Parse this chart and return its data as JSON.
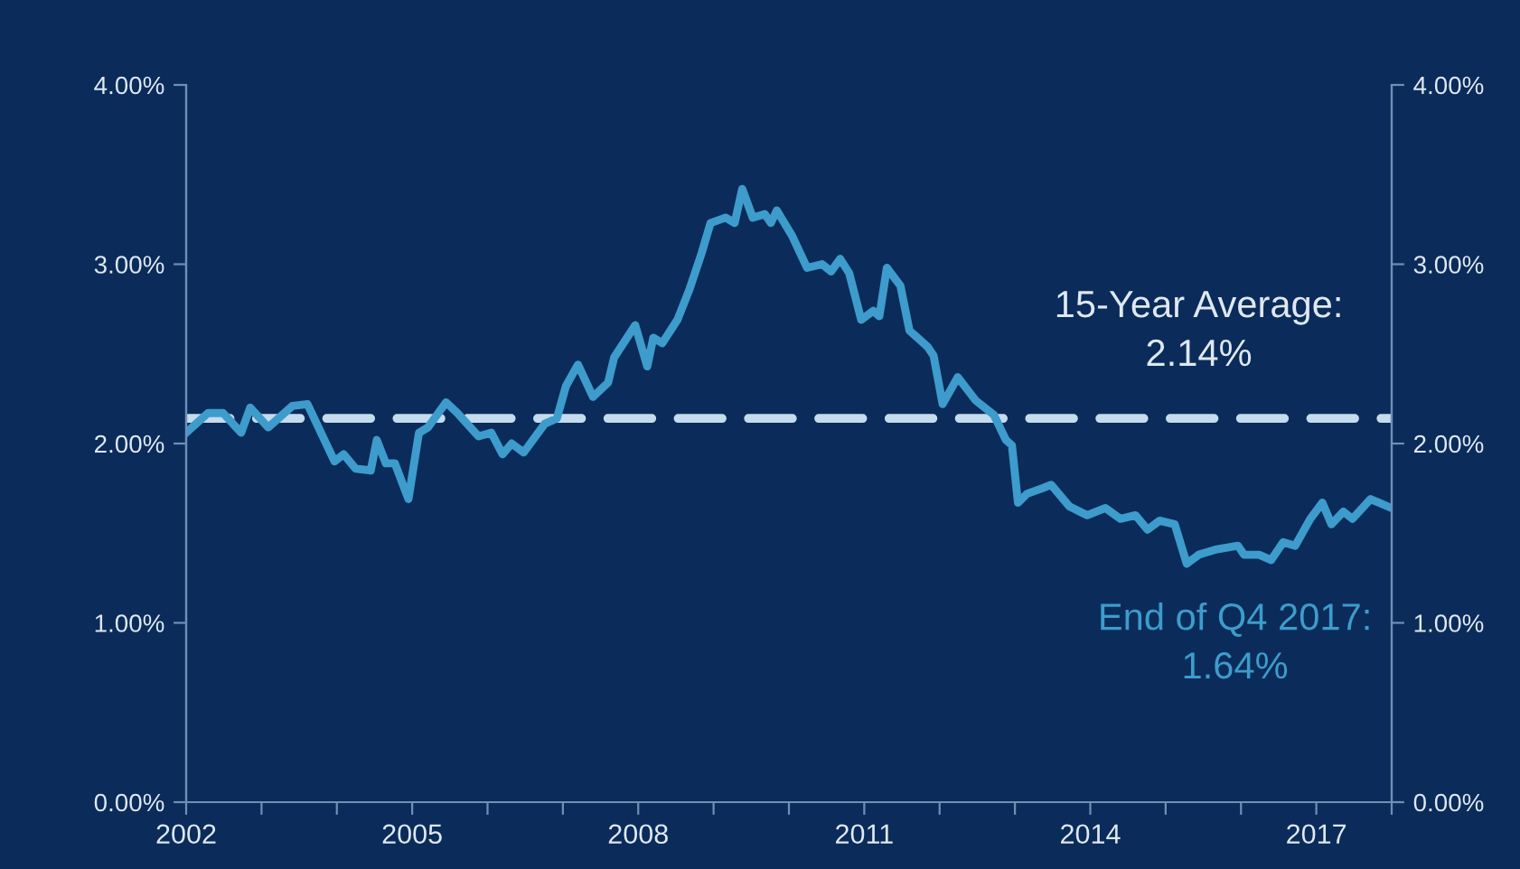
{
  "chart_data": {
    "type": "line",
    "x": [
      2002.0,
      2002.29,
      2002.49,
      2002.73,
      2002.85,
      2003.09,
      2003.41,
      2003.61,
      2003.97,
      2004.09,
      2004.25,
      2004.45,
      2004.53,
      2004.65,
      2004.77,
      2004.95,
      2005.09,
      2005.21,
      2005.45,
      2005.6,
      2005.88,
      2006.05,
      2006.2,
      2006.32,
      2006.48,
      2006.76,
      2006.92,
      2007.04,
      2007.2,
      2007.4,
      2007.6,
      2007.68,
      2007.96,
      2008.12,
      2008.2,
      2008.32,
      2008.52,
      2008.68,
      2008.84,
      2008.96,
      2009.16,
      2009.28,
      2009.38,
      2009.52,
      2009.68,
      2009.76,
      2009.84,
      2010.04,
      2010.24,
      2010.44,
      2010.56,
      2010.68,
      2010.8,
      2010.96,
      2011.12,
      2011.2,
      2011.3,
      2011.48,
      2011.6,
      2011.84,
      2011.92,
      2012.04,
      2012.24,
      2012.48,
      2012.72,
      2012.88,
      2012.96,
      2013.04,
      2013.16,
      2013.36,
      2013.48,
      2013.72,
      2013.96,
      2014.2,
      2014.4,
      2014.6,
      2014.76,
      2014.92,
      2015.12,
      2015.28,
      2015.44,
      2015.68,
      2015.96,
      2016.04,
      2016.24,
      2016.4,
      2016.56,
      2016.72,
      2016.92,
      2017.08,
      2017.2,
      2017.36,
      2017.48,
      2017.72,
      2018.0
    ],
    "series": [
      {
        "color": "#3d9ccb",
        "axis": "y",
        "values": [
          2.06,
          2.17,
          2.17,
          2.06,
          2.2,
          2.09,
          2.21,
          2.22,
          1.9,
          1.94,
          1.86,
          1.85,
          2.02,
          1.89,
          1.89,
          1.69,
          2.06,
          2.09,
          2.23,
          2.17,
          2.04,
          2.06,
          1.94,
          2.0,
          1.95,
          2.11,
          2.14,
          2.32,
          2.44,
          2.26,
          2.34,
          2.48,
          2.66,
          2.43,
          2.59,
          2.56,
          2.69,
          2.86,
          3.06,
          3.23,
          3.26,
          3.23,
          3.42,
          3.26,
          3.28,
          3.23,
          3.3,
          3.16,
          2.98,
          3.0,
          2.96,
          3.03,
          2.95,
          2.69,
          2.74,
          2.71,
          2.98,
          2.88,
          2.63,
          2.54,
          2.49,
          2.22,
          2.37,
          2.24,
          2.16,
          2.02,
          1.99,
          1.67,
          1.72,
          1.75,
          1.77,
          1.65,
          1.6,
          1.64,
          1.58,
          1.6,
          1.52,
          1.57,
          1.55,
          1.33,
          1.38,
          1.41,
          1.43,
          1.38,
          1.38,
          1.35,
          1.45,
          1.43,
          1.58,
          1.67,
          1.55,
          1.62,
          1.58,
          1.69,
          1.64
        ]
      }
    ],
    "xlim": [
      2002,
      2018
    ],
    "xticks": [
      2002,
      {
        "value": 2003,
        "label": null
      },
      {
        "value": 2004,
        "label": null
      },
      2005,
      {
        "value": 2006,
        "label": null
      },
      {
        "value": 2007,
        "label": null
      },
      2008,
      {
        "value": 2009,
        "label": null
      },
      {
        "value": 2010,
        "label": null
      },
      2011,
      {
        "value": 2012,
        "label": null
      },
      {
        "value": 2013,
        "label": null
      },
      2014,
      {
        "value": 2015,
        "label": null
      },
      {
        "value": 2016,
        "label": null
      },
      2017,
      {
        "value": 2018,
        "label": null
      }
    ],
    "ylim": [
      0,
      4
    ],
    "yticks": [
      {
        "value": 0,
        "label": "0.00%"
      },
      {
        "value": 1,
        "label": "1.00%"
      },
      {
        "value": 2,
        "label": "2.00%"
      },
      {
        "value": 3,
        "label": "3.00%"
      },
      {
        "value": 4,
        "label": "4.00%"
      }
    ],
    "y2lim": [
      0,
      4
    ],
    "y2ticks": [
      {
        "value": 0,
        "label": "0.00%"
      },
      {
        "value": 1,
        "label": "1.00%"
      },
      {
        "value": 2,
        "label": "2.00%"
      },
      {
        "value": 3,
        "label": "3.00%"
      },
      {
        "value": 4,
        "label": "4.00%"
      }
    ],
    "ref_lines": [
      {
        "axis": "y",
        "value": 2.14,
        "label": "15-Year Average:\n2.14%",
        "color": "#c5dbee",
        "line_style": "dashed"
      }
    ],
    "annotations": [
      "End of Q4 2017:\n1.64%"
    ],
    "grid": false,
    "legend": false,
    "marker": "none",
    "line_style": "solid"
  }
}
